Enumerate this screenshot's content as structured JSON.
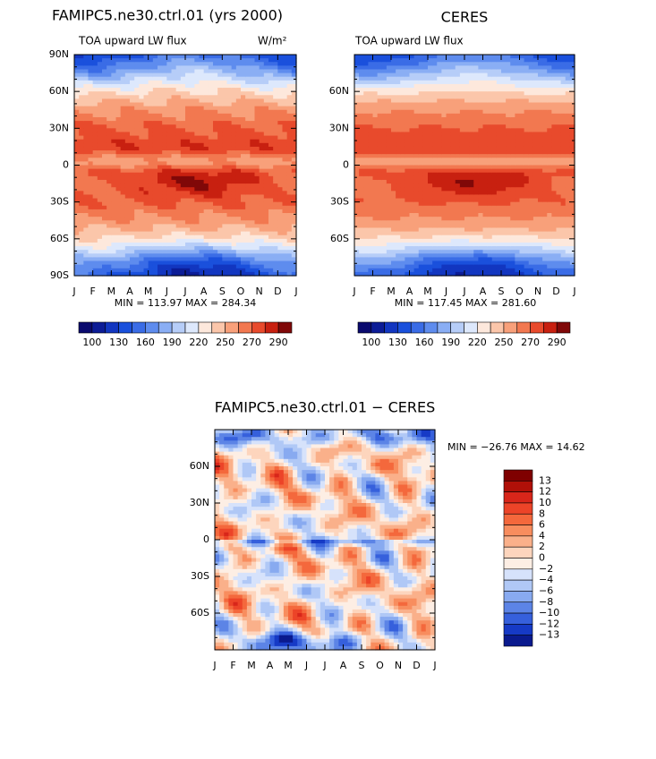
{
  "panels": [
    {
      "title": "FAMIPC5.ne30.ctrl.01 (yrs 2000)",
      "subtitle_left": "TOA upward LW flux",
      "subtitle_right": "W/m²",
      "yticks": [
        "90N",
        "60N",
        "30N",
        "0",
        "30S",
        "60S",
        "90S"
      ],
      "xticks": [
        "J",
        "F",
        "M",
        "A",
        "M",
        "J",
        "J",
        "A",
        "S",
        "O",
        "N",
        "D",
        "J"
      ],
      "stats": "MIN = 113.97 MAX = 284.34",
      "colorbar": {
        "colors": [
          "#0a0a6e",
          "#0c1c96",
          "#1236c0",
          "#1a50dc",
          "#3a6ce6",
          "#5e8cee",
          "#8aaef4",
          "#b6cdf8",
          "#dde8fc",
          "#fde8dc",
          "#fbc6aa",
          "#f8a07a",
          "#f27850",
          "#e84a2c",
          "#c82010",
          "#800808"
        ],
        "labels": [
          "100",
          "130",
          "160",
          "190",
          "220",
          "250",
          "270",
          "290"
        ]
      }
    },
    {
      "title": "CERES",
      "subtitle_left": "TOA upward LW flux",
      "yticks": [
        "60N",
        "30N",
        "0",
        "30S",
        "60S"
      ],
      "xticks": [
        "J",
        "F",
        "M",
        "A",
        "M",
        "J",
        "J",
        "A",
        "S",
        "O",
        "N",
        "D",
        "J"
      ],
      "stats": "MIN = 117.45 MAX = 281.60",
      "colorbar": {
        "colors": [
          "#0a0a6e",
          "#0c1c96",
          "#1236c0",
          "#1a50dc",
          "#3a6ce6",
          "#5e8cee",
          "#8aaef4",
          "#b6cdf8",
          "#dde8fc",
          "#fde8dc",
          "#fbc6aa",
          "#f8a07a",
          "#f27850",
          "#e84a2c",
          "#c82010",
          "#800808"
        ],
        "labels": [
          "100",
          "130",
          "160",
          "190",
          "220",
          "250",
          "270",
          "290"
        ]
      }
    },
    {
      "title": "FAMIPC5.ne30.ctrl.01 − CERES",
      "yticks": [
        "60N",
        "30N",
        "0",
        "30S",
        "60S"
      ],
      "xticks": [
        "J",
        "F",
        "M",
        "A",
        "M",
        "J",
        "J",
        "A",
        "S",
        "O",
        "N",
        "D",
        "J"
      ],
      "stats": "MIN = −26.76 MAX =  14.62",
      "colorbar": {
        "colors": [
          "#7f0000",
          "#b01008",
          "#d8261a",
          "#ec4428",
          "#f4683c",
          "#f88d5e",
          "#fab08a",
          "#fdd5bd",
          "#fdeee4",
          "#d6e2fb",
          "#b0c8f6",
          "#88aaf0",
          "#5c84e6",
          "#3660dc",
          "#163ac6",
          "#0a1a8e"
        ],
        "labels": [
          "13",
          "12",
          "10",
          "8",
          "6",
          "4",
          "2",
          "0",
          "−2",
          "−4",
          "−6",
          "−8",
          "−10",
          "−12",
          "−13"
        ]
      }
    }
  ]
}
